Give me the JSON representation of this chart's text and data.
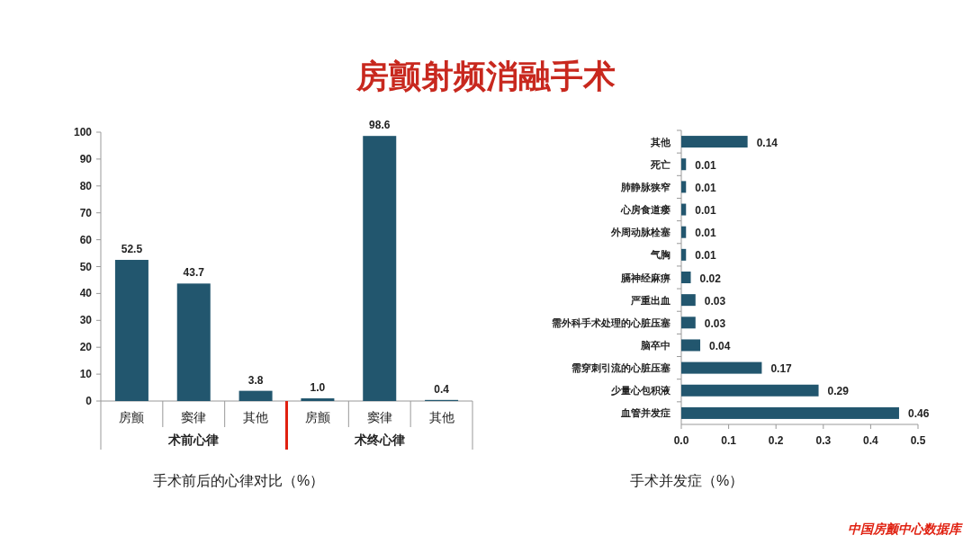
{
  "chart_data": [
    {
      "type": "bar",
      "title": "房颤射频消融手术",
      "xlabel": "手术前后的心律对比（%）",
      "categories": [
        "房颤",
        "窦律",
        "其他",
        "房颤",
        "窦律",
        "其他"
      ],
      "values": [
        52.5,
        43.7,
        3.8,
        1.0,
        98.6,
        0.4
      ],
      "value_labels": [
        "52.5",
        "43.7",
        "3.8",
        "1.0",
        "98.6",
        "0.4"
      ],
      "color": "#22566e",
      "ylim": [
        0,
        100
      ],
      "yticks": [
        0,
        10,
        20,
        30,
        40,
        50,
        60,
        70,
        80,
        90,
        100
      ],
      "annotations": [
        "术前心律",
        "术终心律"
      ]
    },
    {
      "type": "bar",
      "orientation": "horizontal",
      "xlabel": "手术并发症（%）",
      "categories": [
        "其他",
        "死亡",
        "肺静脉狭窄",
        "心房食道瘘",
        "外周动脉栓塞",
        "气胸",
        "膈神经麻痹",
        "严重出血",
        "需外科手术处理的心脏压塞",
        "脑卒中",
        "需穿刺引流的心脏压塞",
        "少量心包积液",
        "血管并发症"
      ],
      "values": [
        0.14,
        0.01,
        0.01,
        0.01,
        0.01,
        0.01,
        0.02,
        0.03,
        0.03,
        0.04,
        0.17,
        0.29,
        0.46
      ],
      "data_labels": true,
      "color": "#22566e",
      "xlim": [
        0,
        0.5
      ],
      "xticks": [
        {
          "value": 0,
          "label": "0.0"
        },
        {
          "value": 0.1,
          "label": "0.1"
        },
        {
          "value": 0.2,
          "label": "0.2"
        },
        {
          "value": 0.3,
          "label": "0.3"
        },
        {
          "value": 0.4,
          "label": "0.4"
        },
        {
          "value": 0.5,
          "label": "0.5"
        }
      ],
      "annotations": [
        "中国房颤中心数据库"
      ]
    }
  ]
}
